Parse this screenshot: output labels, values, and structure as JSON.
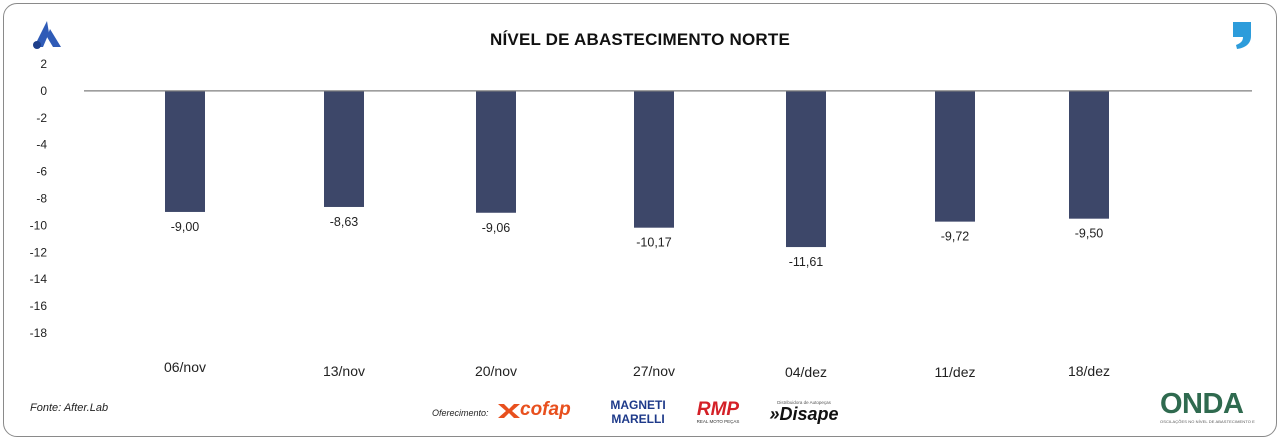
{
  "chart_data": {
    "type": "bar",
    "title": "NÍVEL DE ABASTECIMENTO NORTE",
    "categories": [
      "06/nov",
      "13/nov",
      "20/nov",
      "27/nov",
      "04/dez",
      "11/dez",
      "18/dez"
    ],
    "values": [
      -9.0,
      -8.63,
      -9.06,
      -10.17,
      -11.61,
      -9.72,
      -9.5
    ],
    "value_labels": [
      "-9,00",
      "-8,63",
      "-9,06",
      "-10,17",
      "-11,61",
      "-9,72",
      "-9,50"
    ],
    "ylim": [
      -18,
      2
    ],
    "yticks": [
      "2",
      "0",
      "-2",
      "-4",
      "-6",
      "-8",
      "-10",
      "-12",
      "-14",
      "-16",
      "-18"
    ],
    "grid": false,
    "legend": "none",
    "bar_color": "#3d4769",
    "xlabel": "",
    "ylabel": ""
  },
  "footer": {
    "source": "Fonte: After.Lab",
    "sponsor_label": "Oferecimento:",
    "sponsors": [
      "cofap",
      "MAGNETI MARELLI",
      "RMP",
      "Disape"
    ],
    "rmp_caption": "REAL MOTO PEÇAS",
    "disape_caption": "Distribuidora de Autopeças",
    "brand": "ONDA",
    "brand_caption": "OSCILAÇÕES NO NÍVEL DE ABASTECIMENTO E PREÇO"
  },
  "colors": {
    "accent_blue": "#2d9cdb",
    "logo_blue": "#2f5bb7",
    "cofap_orange": "#e8501e",
    "rmp_red": "#d42027",
    "magneti_blue": "#1e3a8a"
  },
  "icons": {
    "left_logo": "stylized-a-logo",
    "right_logo": "comma-quote-logo"
  }
}
